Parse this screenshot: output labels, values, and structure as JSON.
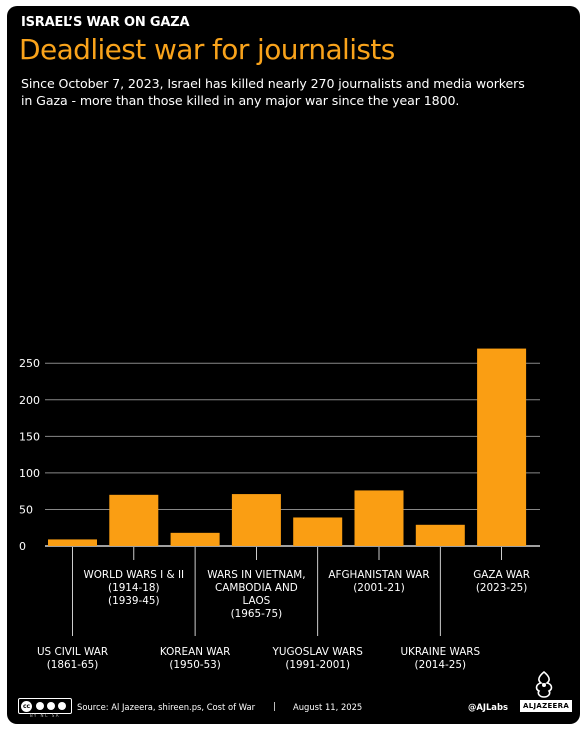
{
  "header": {
    "kicker": "ISRAEL’S WAR ON GAZA",
    "title": "Deadliest war for journalists",
    "subtitle_line1": "Since October 7, 2023, Israel has killed nearly 270 journalists and media workers",
    "subtitle_line2": "in Gaza - more than those killed in any major war since the year 1800."
  },
  "chart_data": {
    "type": "bar",
    "title": "Deadliest war for journalists",
    "categories": [
      {
        "lines": [
          "US CIVIL WAR",
          "(1861-65)"
        ],
        "position": "low"
      },
      {
        "lines": [
          "WORLD WARS I & II",
          "(1914-18)",
          "(1939-45)"
        ],
        "position": "high"
      },
      {
        "lines": [
          "KOREAN WAR",
          "(1950-53)"
        ],
        "position": "low"
      },
      {
        "lines": [
          "WARS IN VIETNAM,",
          "CAMBODIA AND",
          "LAOS",
          "(1965-75)"
        ],
        "position": "high"
      },
      {
        "lines": [
          "YUGOSLAV WARS",
          "(1991-2001)"
        ],
        "position": "low"
      },
      {
        "lines": [
          "AFGHANISTAN WAR",
          "(2001-21)"
        ],
        "position": "high"
      },
      {
        "lines": [
          "UKRAINE WARS",
          "(2014-25)"
        ],
        "position": "low"
      },
      {
        "lines": [
          "GAZA WAR",
          "(2023-25)"
        ],
        "position": "high"
      }
    ],
    "values": [
      9,
      70,
      18,
      71,
      39,
      76,
      29,
      270
    ],
    "yticks": [
      0,
      50,
      100,
      150,
      200,
      250
    ],
    "ylim": [
      0,
      270
    ],
    "grid": true,
    "bar_color": "#fa9e13",
    "grid_color": "#888888"
  },
  "footer": {
    "cc_text": "cc",
    "cc_sub": "BY NC SA",
    "source": "Source:  Al Jazeera, shireen.ps, Cost of War",
    "separator": "|",
    "date": "August 11, 2025",
    "handle": "@AJLabs",
    "brand": "ALJAZEERA"
  },
  "colors": {
    "background": "#000000",
    "accent": "#f9a31b",
    "text": "#ffffff"
  }
}
